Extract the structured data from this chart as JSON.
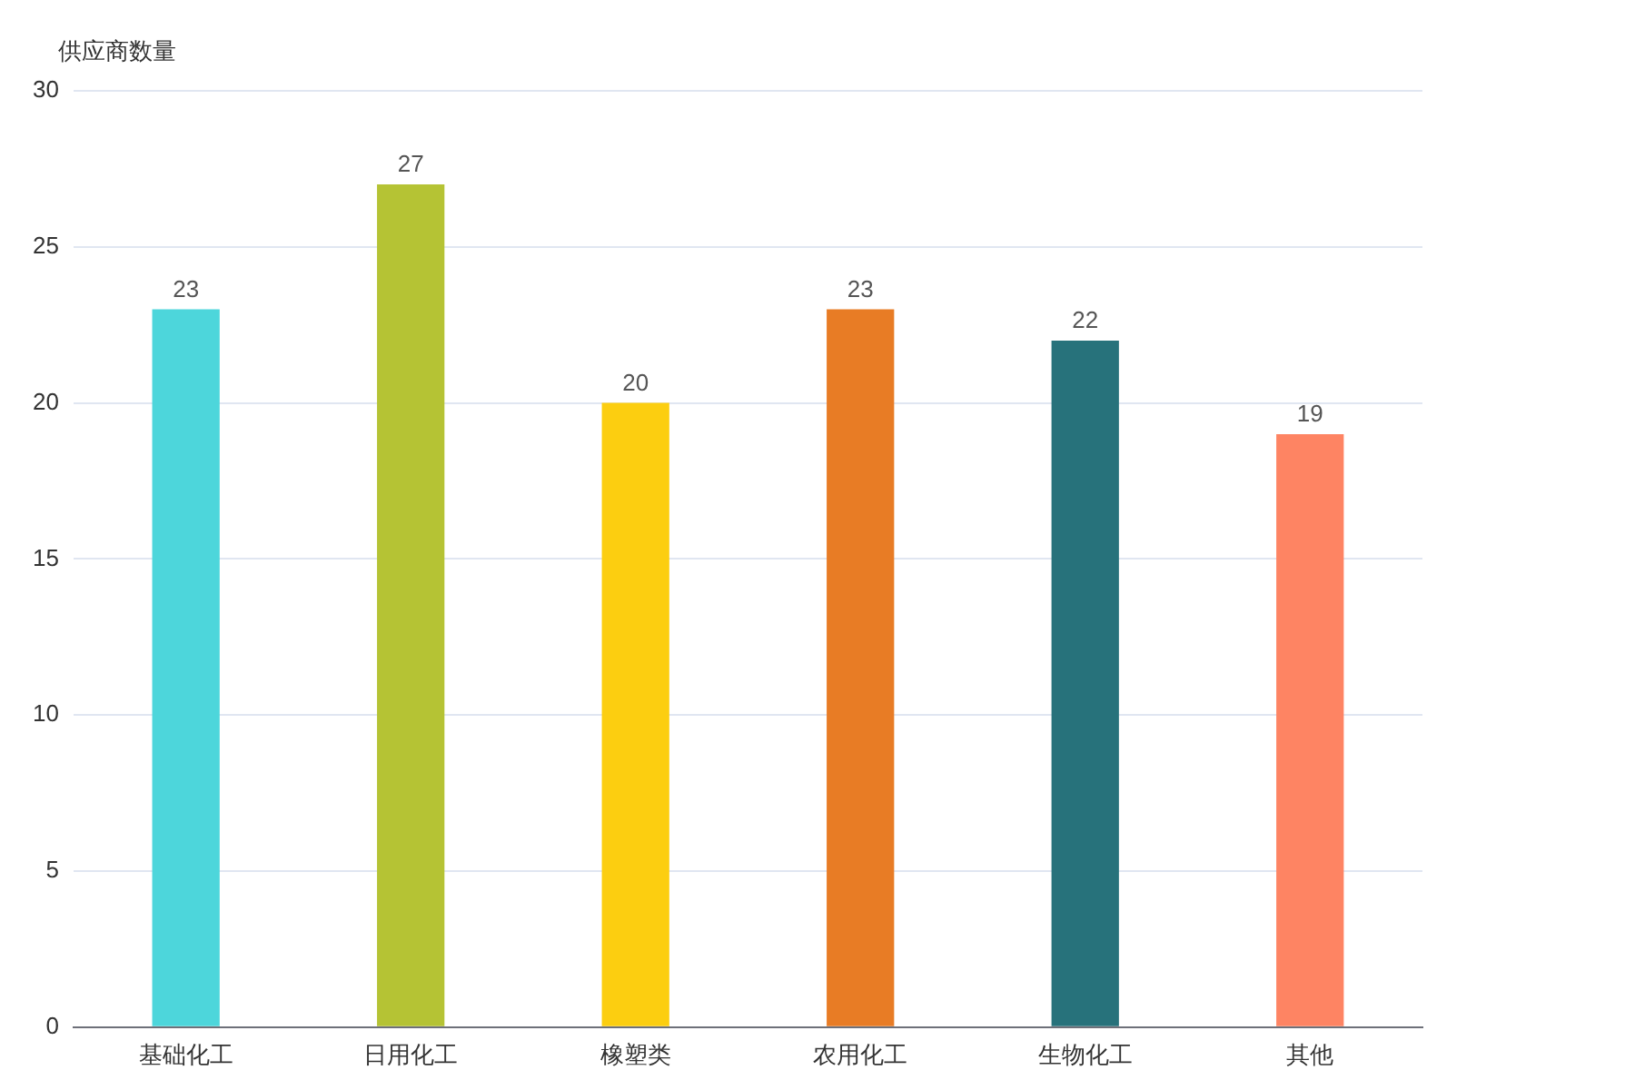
{
  "chart_data": {
    "type": "bar",
    "ylabel": "供应商数量",
    "categories": [
      "基础化工",
      "日用化工",
      "橡塑类",
      "农用化工",
      "生物化工",
      "其他"
    ],
    "values": [
      23,
      27,
      20,
      23,
      22,
      19
    ],
    "colors": [
      "#4dd6db",
      "#b5c334",
      "#fcce10",
      "#e87c25",
      "#27727b",
      "#fe8463"
    ],
    "ylim": [
      0,
      30
    ],
    "yticks": [
      0,
      5,
      10,
      15,
      20,
      25,
      30
    ],
    "grid": "y",
    "data_labels": true,
    "legend": false
  }
}
